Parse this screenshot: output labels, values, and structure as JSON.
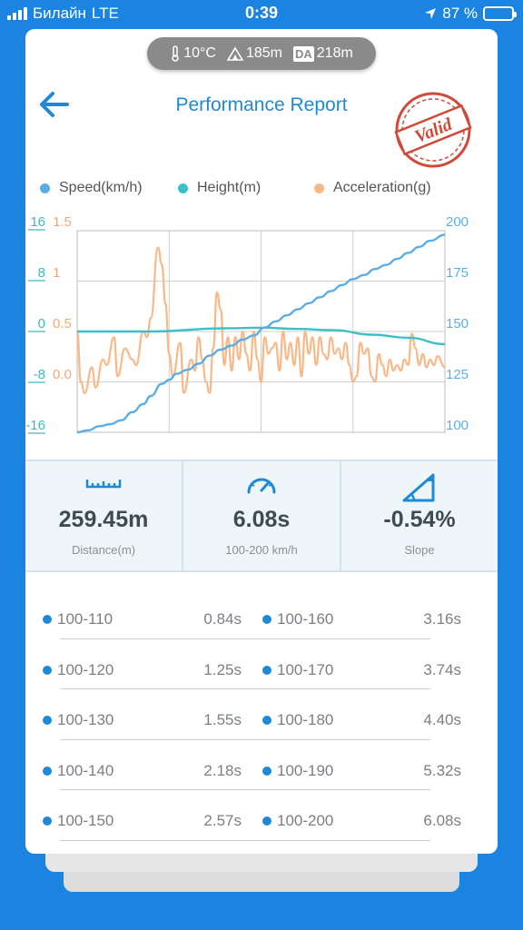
{
  "status_bar": {
    "carrier": "Билайн",
    "network": "LTE",
    "time": "0:39",
    "battery": "87 %",
    "battery_level": 0.87
  },
  "conditions": {
    "temperature": "10°C",
    "altitude": "185m",
    "da_label": "DA",
    "density_altitude": "218m"
  },
  "header": {
    "title": "Performance Report",
    "stamp_text": "Valid"
  },
  "legend": [
    {
      "label": "Speed(km/h)",
      "color": "#5aaee8"
    },
    {
      "label": "Height(m)",
      "color": "#3cc0c8"
    },
    {
      "label": "Acceleration(g)",
      "color": "#f8b888"
    }
  ],
  "chart_data": {
    "type": "line",
    "axes": {
      "height_ticks": [
        "16",
        "8",
        "0",
        "-8",
        "-16"
      ],
      "acceleration_ticks": [
        "1.5",
        "1",
        "0.5",
        "0.0"
      ],
      "speed_ticks": [
        "200",
        "175",
        "150",
        "125",
        "100"
      ],
      "speed_range": [
        100,
        200
      ],
      "height_range": [
        -16,
        16
      ],
      "acceleration_range": [
        -0.3,
        1.5
      ]
    },
    "grid": true,
    "series": [
      {
        "name": "Speed(km/h)",
        "axis": "speed",
        "color": "#5aaee8",
        "points": [
          [
            0,
            100
          ],
          [
            0.03,
            101
          ],
          [
            0.06,
            103
          ],
          [
            0.09,
            104
          ],
          [
            0.12,
            106
          ],
          [
            0.15,
            110
          ],
          [
            0.18,
            114
          ],
          [
            0.2,
            118
          ],
          [
            0.23,
            124
          ],
          [
            0.25,
            126
          ],
          [
            0.27,
            129
          ],
          [
            0.3,
            131
          ],
          [
            0.33,
            134
          ],
          [
            0.36,
            138
          ],
          [
            0.39,
            141
          ],
          [
            0.42,
            143
          ],
          [
            0.45,
            146
          ],
          [
            0.48,
            148
          ],
          [
            0.51,
            152
          ],
          [
            0.54,
            155
          ],
          [
            0.57,
            158
          ],
          [
            0.6,
            161
          ],
          [
            0.63,
            164
          ],
          [
            0.66,
            167
          ],
          [
            0.69,
            170
          ],
          [
            0.72,
            173
          ],
          [
            0.75,
            176
          ],
          [
            0.78,
            178
          ],
          [
            0.81,
            181
          ],
          [
            0.84,
            183
          ],
          [
            0.87,
            186
          ],
          [
            0.9,
            189
          ],
          [
            0.93,
            192
          ],
          [
            0.96,
            195
          ],
          [
            1,
            198
          ]
        ]
      },
      {
        "name": "Height(m)",
        "axis": "height",
        "color": "#3cc0c8",
        "points": [
          [
            0,
            0
          ],
          [
            0.2,
            0
          ],
          [
            0.4,
            0.5
          ],
          [
            0.5,
            0.6
          ],
          [
            0.6,
            0.4
          ],
          [
            0.7,
            0.2
          ],
          [
            0.8,
            -0.5
          ],
          [
            0.9,
            -1
          ],
          [
            1,
            -2
          ]
        ]
      },
      {
        "name": "Acceleration(g)",
        "axis": "acceleration",
        "color": "#f8b888",
        "points": [
          [
            0,
            0.6
          ],
          [
            0.01,
            0.15
          ],
          [
            0.02,
            0.05
          ],
          [
            0.04,
            0.28
          ],
          [
            0.05,
            0.1
          ],
          [
            0.07,
            0.35
          ],
          [
            0.08,
            0.3
          ],
          [
            0.1,
            0.55
          ],
          [
            0.11,
            0.2
          ],
          [
            0.13,
            0.45
          ],
          [
            0.15,
            0.35
          ],
          [
            0.16,
            0.3
          ],
          [
            0.18,
            0.6
          ],
          [
            0.19,
            0.55
          ],
          [
            0.2,
            0.72
          ],
          [
            0.22,
            1.35
          ],
          [
            0.23,
            1.2
          ],
          [
            0.24,
            0.85
          ],
          [
            0.25,
            0.4
          ],
          [
            0.26,
            0.2
          ],
          [
            0.28,
            0.5
          ],
          [
            0.29,
            0.05
          ],
          [
            0.31,
            0.35
          ],
          [
            0.32,
            0.25
          ],
          [
            0.33,
            0.55
          ],
          [
            0.34,
            0.35
          ],
          [
            0.35,
            0.15
          ],
          [
            0.36,
            0.05
          ],
          [
            0.37,
            0.45
          ],
          [
            0.38,
            0.95
          ],
          [
            0.39,
            0.8
          ],
          [
            0.4,
            0.3
          ],
          [
            0.41,
            0.55
          ],
          [
            0.42,
            0.25
          ],
          [
            0.43,
            0.55
          ],
          [
            0.44,
            0.35
          ],
          [
            0.45,
            0.6
          ],
          [
            0.46,
            0.4
          ],
          [
            0.47,
            0.25
          ],
          [
            0.48,
            0.6
          ],
          [
            0.49,
            0.35
          ],
          [
            0.5,
            0.15
          ],
          [
            0.51,
            0.55
          ],
          [
            0.52,
            0.4
          ],
          [
            0.53,
            0.45
          ],
          [
            0.54,
            0.5
          ],
          [
            0.55,
            0.25
          ],
          [
            0.56,
            0.6
          ],
          [
            0.57,
            0.35
          ],
          [
            0.58,
            0.5
          ],
          [
            0.59,
            0.3
          ],
          [
            0.6,
            0.55
          ],
          [
            0.61,
            0.2
          ],
          [
            0.62,
            0.6
          ],
          [
            0.63,
            0.4
          ],
          [
            0.64,
            0.55
          ],
          [
            0.65,
            0.3
          ],
          [
            0.66,
            0.55
          ],
          [
            0.67,
            0.4
          ],
          [
            0.68,
            0.35
          ],
          [
            0.69,
            0.55
          ],
          [
            0.7,
            0.4
          ],
          [
            0.71,
            0.45
          ],
          [
            0.72,
            0.35
          ],
          [
            0.73,
            0.5
          ],
          [
            0.74,
            0.3
          ],
          [
            0.75,
            0.15
          ],
          [
            0.76,
            0.2
          ],
          [
            0.77,
            0.5
          ],
          [
            0.78,
            0.4
          ],
          [
            0.79,
            0.45
          ],
          [
            0.8,
            0.2
          ],
          [
            0.81,
            0.15
          ],
          [
            0.82,
            0.4
          ],
          [
            0.83,
            0.3
          ],
          [
            0.84,
            0.2
          ],
          [
            0.85,
            0.35
          ],
          [
            0.86,
            0.25
          ],
          [
            0.87,
            0.3
          ],
          [
            0.88,
            0.25
          ],
          [
            0.89,
            0.35
          ],
          [
            0.9,
            0.3
          ],
          [
            0.91,
            0.58
          ],
          [
            0.92,
            0.45
          ],
          [
            0.93,
            0.3
          ],
          [
            0.94,
            0.4
          ],
          [
            0.95,
            0.28
          ],
          [
            0.96,
            0.35
          ],
          [
            0.97,
            0.3
          ],
          [
            0.98,
            0.38
          ],
          [
            1,
            0.28
          ]
        ]
      }
    ]
  },
  "stats": [
    {
      "icon": "ruler-icon",
      "value": "259.45m",
      "label": "Distance(m)"
    },
    {
      "icon": "speedometer-icon",
      "value": "6.08s",
      "label": "100-200 km/h"
    },
    {
      "icon": "slope-icon",
      "value": "-0.54%",
      "label": "Slope"
    }
  ],
  "splits": [
    {
      "left": {
        "range": "100-110",
        "time": "0.84s"
      },
      "right": {
        "range": "100-160",
        "time": "3.16s"
      }
    },
    {
      "left": {
        "range": "100-120",
        "time": "1.25s"
      },
      "right": {
        "range": "100-170",
        "time": "3.74s"
      }
    },
    {
      "left": {
        "range": "100-130",
        "time": "1.55s"
      },
      "right": {
        "range": "100-180",
        "time": "4.40s"
      }
    },
    {
      "left": {
        "range": "100-140",
        "time": "2.18s"
      },
      "right": {
        "range": "100-190",
        "time": "5.32s"
      }
    },
    {
      "left": {
        "range": "100-150",
        "time": "2.57s"
      },
      "right": {
        "range": "100-200",
        "time": "6.08s"
      }
    }
  ]
}
